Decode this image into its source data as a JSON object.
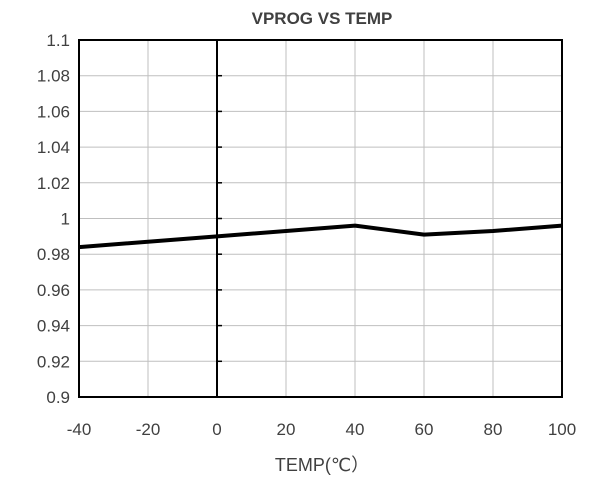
{
  "chart_data": {
    "type": "line",
    "title": "VPROG VS TEMP",
    "xlabel": "TEMP(℃）",
    "ylabel": "",
    "x": [
      -40,
      0,
      40,
      60,
      80,
      100
    ],
    "series": [
      {
        "values": [
          0.984,
          0.99,
          0.996,
          0.991,
          0.993,
          0.996
        ]
      }
    ],
    "xlim": [
      -40,
      100
    ],
    "ylim": [
      0.9,
      1.1
    ],
    "x_ticks": [
      "-40",
      "-20",
      "0",
      "20",
      "40",
      "60",
      "80",
      "100"
    ],
    "y_ticks": [
      "0.9",
      "0.92",
      "0.94",
      "0.96",
      "0.98",
      "1",
      "1.02",
      "1.04",
      "1.06",
      "1.08",
      "1.1"
    ],
    "grid": true,
    "legend": "none",
    "colors": {
      "line": "#000000",
      "grid": "#bfbfbf",
      "text": "#404040"
    }
  }
}
